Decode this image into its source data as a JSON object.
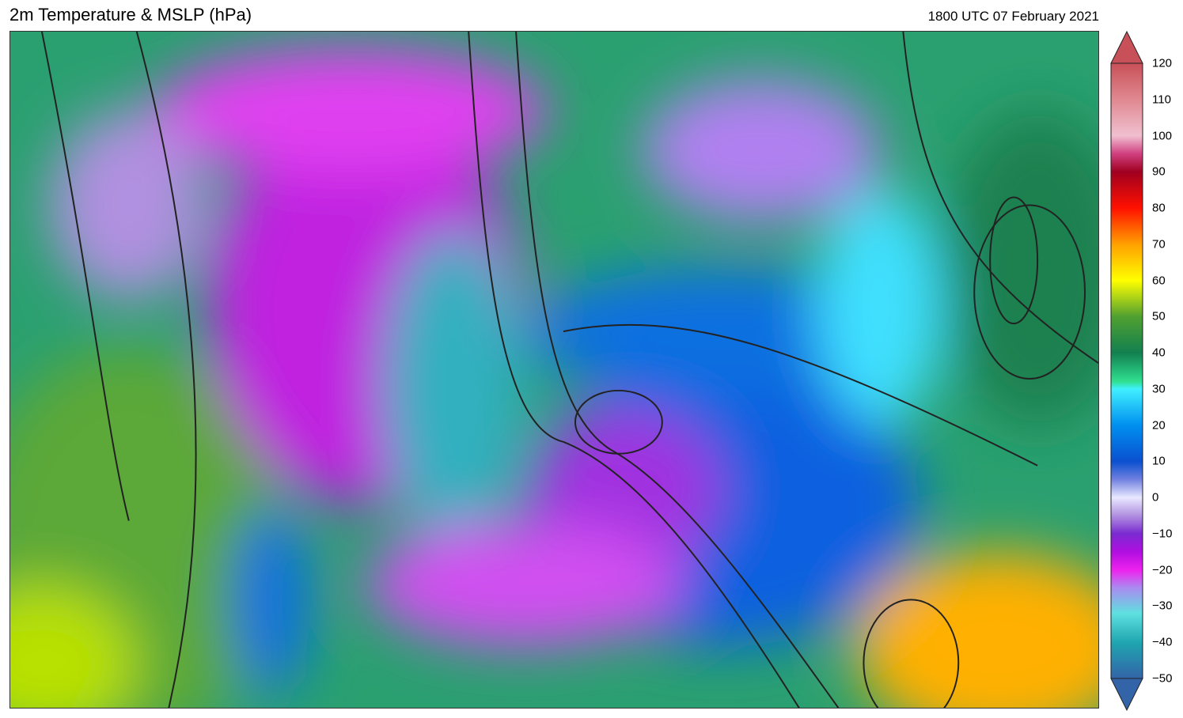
{
  "header": {
    "title": "2m Temperature & MSLP (hPa)",
    "valid_time": "1800 UTC 07 February 2021"
  },
  "colorbar": {
    "ticks": [
      "120",
      "110",
      "100",
      "90",
      "80",
      "70",
      "60",
      "50",
      "40",
      "30",
      "20",
      "10",
      "0",
      "−10",
      "−20",
      "−30",
      "−40",
      "−50"
    ],
    "min": -50,
    "max": 120,
    "stops": [
      {
        "v": -50,
        "c": "#3364a8"
      },
      {
        "v": -40,
        "c": "#1fa6b0"
      },
      {
        "v": -32,
        "c": "#5fe0e0"
      },
      {
        "v": -25,
        "c": "#a98cf0"
      },
      {
        "v": -20,
        "c": "#ee22ee"
      },
      {
        "v": -15,
        "c": "#b00ee0"
      },
      {
        "v": -10,
        "c": "#7a2ad0"
      },
      {
        "v": -5,
        "c": "#b090e0"
      },
      {
        "v": 0,
        "c": "#e8e8ff"
      },
      {
        "v": 5,
        "c": "#7080e0"
      },
      {
        "v": 10,
        "c": "#0a50d0"
      },
      {
        "v": 20,
        "c": "#0090f0"
      },
      {
        "v": 30,
        "c": "#40f0ff"
      },
      {
        "v": 32,
        "c": "#30e090"
      },
      {
        "v": 40,
        "c": "#128050"
      },
      {
        "v": 50,
        "c": "#50a030"
      },
      {
        "v": 60,
        "c": "#ffff00"
      },
      {
        "v": 70,
        "c": "#ffa000"
      },
      {
        "v": 80,
        "c": "#ff1000"
      },
      {
        "v": 90,
        "c": "#a00020"
      },
      {
        "v": 95,
        "c": "#d04080"
      },
      {
        "v": 100,
        "c": "#f0c0d0"
      },
      {
        "v": 110,
        "c": "#e08890"
      },
      {
        "v": 120,
        "c": "#c85058"
      }
    ]
  }
}
